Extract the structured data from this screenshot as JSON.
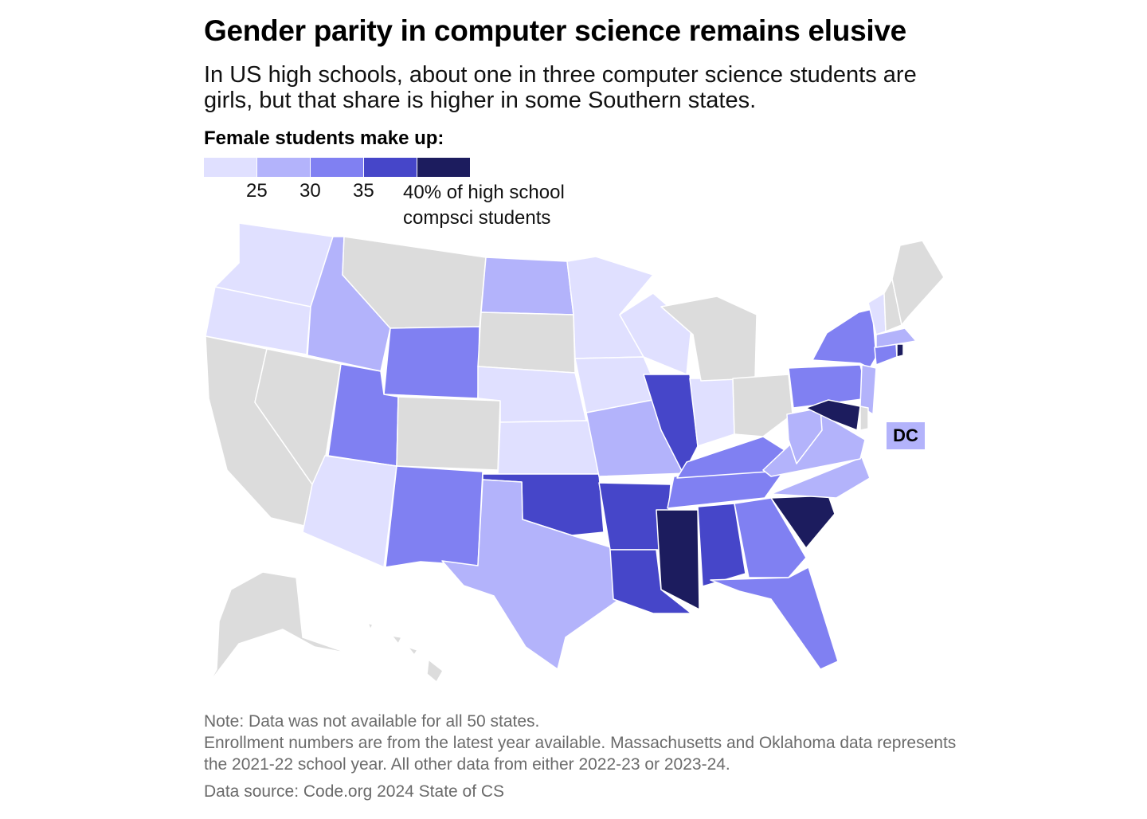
{
  "header": {
    "title": "Gender parity in computer science remains elusive",
    "subtitle": "In US high schools, about one in three computer science students are girls, but that share is higher in some Southern states."
  },
  "legend": {
    "title": "Female students make up:",
    "colors": [
      "#e0e0ff",
      "#b3b3fb",
      "#8080f2",
      "#4646c9",
      "#1c1c5e"
    ],
    "ticks": [
      "25",
      "30",
      "35"
    ],
    "last_label_line1": "40% of high school",
    "last_label_line2": "compsci students"
  },
  "map": {
    "no_data_color": "#dcdcdc",
    "bins": {
      "below_25": [
        "WA",
        "OR",
        "AZ",
        "NE",
        "KS",
        "MN",
        "WI",
        "IA",
        "IN",
        "VT"
      ],
      "25_30": [
        "ID",
        "ND",
        "MO",
        "TX",
        "WV",
        "VA",
        "NC",
        "NJ",
        "MA",
        "DC"
      ],
      "30_35": [
        "UT",
        "WY",
        "NM",
        "NY",
        "PA",
        "KY",
        "TN",
        "GA",
        "FL",
        "CT"
      ],
      "35_40": [
        "IL",
        "OK",
        "AR",
        "LA",
        "AL"
      ],
      "40_plus": [
        "MS",
        "SC",
        "MD",
        "RI"
      ]
    },
    "no_data": [
      "CA",
      "NV",
      "MT",
      "CO",
      "SD",
      "MI",
      "OH",
      "ME",
      "NH",
      "AK",
      "HI",
      "DE"
    ],
    "dc_label": "DC"
  },
  "footer": {
    "note1": "Note: Data was not available for all 50 states.",
    "note2": "Enrollment numbers are from the latest year available. Massachusetts and Oklahoma data represents the 2021-22 school year. All other data from either 2022-23 or 2023-24.",
    "source": "Data source: Code.org 2024 State of CS"
  }
}
